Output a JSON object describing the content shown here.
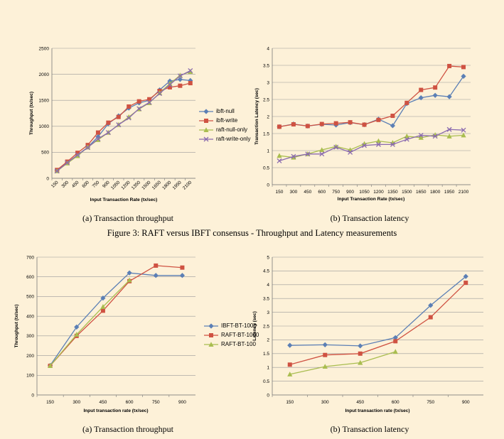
{
  "captions": {
    "top_left": "(a) Transaction throughput",
    "top_right": "(b) Transaction latency",
    "figure3": "Figure 3: RAFT versus IBFT consensus - Throughput and Latency measurements",
    "bottom_left": "(a) Transaction throughput",
    "bottom_right": "(b) Transaction latency"
  },
  "chart_data": [
    {
      "id": "top-throughput",
      "type": "line",
      "title": "",
      "xlabel": "Input Transaction Rate (tx/sec)",
      "ylabel": "Throughput (tx/sec)",
      "categories": [
        "150",
        "300",
        "450",
        "600",
        "750",
        "900",
        "1050",
        "1200",
        "1350",
        "1500",
        "1650",
        "1800",
        "1950",
        "2100"
      ],
      "ylim": [
        0,
        2500
      ],
      "yticks": [
        0,
        500,
        1000,
        1500,
        2000,
        2500
      ],
      "xtick_rotation": true,
      "series": [
        {
          "name": "ibft-null",
          "color": "#5b7fb5",
          "marker": "diamond",
          "values": [
            150,
            300,
            450,
            600,
            800,
            1050,
            1200,
            1350,
            1450,
            1500,
            1700,
            1870,
            1900,
            1880
          ]
        },
        {
          "name": "ibft-write",
          "color": "#cf5242",
          "marker": "square",
          "values": [
            160,
            320,
            490,
            640,
            880,
            1070,
            1180,
            1380,
            1480,
            1520,
            1680,
            1750,
            1780,
            1830
          ]
        },
        {
          "name": "raft-null-only",
          "color": "#a9bd4f",
          "marker": "triangle",
          "values": [
            140,
            290,
            430,
            600,
            740,
            880,
            1030,
            1180,
            1330,
            1450,
            1640,
            1820,
            1980,
            2050
          ]
        },
        {
          "name": "raft-write-only",
          "color": "#8a6aaf",
          "marker": "x",
          "values": [
            140,
            300,
            450,
            590,
            760,
            880,
            1030,
            1160,
            1340,
            1460,
            1630,
            1800,
            1970,
            2070
          ]
        }
      ]
    },
    {
      "id": "top-latency",
      "type": "line",
      "title": "",
      "xlabel": "Input Transaction Rate (tx/sec)",
      "ylabel": "Transaction Latency (sec)",
      "categories": [
        "150",
        "300",
        "450",
        "600",
        "750",
        "900",
        "1050",
        "1200",
        "1350",
        "1500",
        "1650",
        "1800",
        "1950",
        "2100"
      ],
      "ylim": [
        0,
        4
      ],
      "yticks": [
        0,
        0.5,
        1,
        1.5,
        2,
        2.5,
        3,
        3.5,
        4
      ],
      "series": [
        {
          "name": "ibft-null",
          "color": "#5b7fb5",
          "marker": "diamond",
          "values": [
            1.7,
            1.78,
            1.72,
            1.77,
            1.75,
            1.82,
            1.76,
            1.92,
            1.73,
            2.38,
            2.55,
            2.62,
            2.58,
            3.18
          ]
        },
        {
          "name": "ibft-write",
          "color": "#cf5242",
          "marker": "square",
          "values": [
            1.7,
            1.77,
            1.72,
            1.78,
            1.8,
            1.83,
            1.76,
            1.9,
            2.02,
            2.4,
            2.78,
            2.85,
            3.48,
            3.45
          ]
        },
        {
          "name": "raft-null-only",
          "color": "#a9bd4f",
          "marker": "triangle",
          "values": [
            0.85,
            0.8,
            0.9,
            1.02,
            1.12,
            1.02,
            1.2,
            1.28,
            1.23,
            1.42,
            1.38,
            1.46,
            1.42,
            1.45
          ]
        },
        {
          "name": "raft-write-only",
          "color": "#8a6aaf",
          "marker": "x",
          "values": [
            0.7,
            0.83,
            0.9,
            0.9,
            1.1,
            0.95,
            1.15,
            1.18,
            1.18,
            1.33,
            1.45,
            1.42,
            1.62,
            1.6
          ]
        }
      ]
    },
    {
      "id": "bottom-throughput",
      "type": "line",
      "title": "",
      "xlabel": "Input transaction rate (tx/sec)",
      "ylabel": "Throughput (tx/sec)",
      "categories": [
        "150",
        "300",
        "450",
        "600",
        "750",
        "900"
      ],
      "ylim": [
        0,
        700
      ],
      "yticks": [
        0,
        100,
        200,
        300,
        400,
        500,
        600,
        700
      ],
      "series": [
        {
          "name": "IBFT-BT-1000",
          "color": "#5b7fb5",
          "marker": "diamond",
          "values": [
            150,
            345,
            492,
            620,
            607,
            607
          ]
        },
        {
          "name": "RAFT-BT-1000",
          "color": "#cf5242",
          "marker": "square",
          "values": [
            148,
            300,
            428,
            578,
            657,
            647
          ]
        },
        {
          "name": "RAFT-BT-100",
          "color": "#a9bd4f",
          "marker": "triangle",
          "values": [
            148,
            307,
            448,
            583,
            null,
            null
          ]
        }
      ]
    },
    {
      "id": "bottom-latency",
      "type": "line",
      "title": "",
      "xlabel": "Input transaction rate (tx/sec)",
      "ylabel": "Latency (sec)",
      "categories": [
        "150",
        "300",
        "450",
        "600",
        "750",
        "900"
      ],
      "ylim": [
        0,
        5
      ],
      "yticks": [
        0,
        0.5,
        1,
        1.5,
        2,
        2.5,
        3,
        3.5,
        4,
        4.5,
        5
      ],
      "series": [
        {
          "name": "IBFT-BT-1000",
          "color": "#5b7fb5",
          "marker": "diamond",
          "values": [
            1.8,
            1.82,
            1.78,
            2.08,
            3.25,
            4.3
          ]
        },
        {
          "name": "RAFT-BT-1000",
          "color": "#cf5242",
          "marker": "square",
          "values": [
            1.1,
            1.45,
            1.5,
            1.95,
            2.82,
            4.07
          ]
        },
        {
          "name": "RAFT-BT-100",
          "color": "#a9bd4f",
          "marker": "triangle",
          "values": [
            0.75,
            1.03,
            1.17,
            1.57,
            null,
            null
          ]
        }
      ]
    }
  ]
}
